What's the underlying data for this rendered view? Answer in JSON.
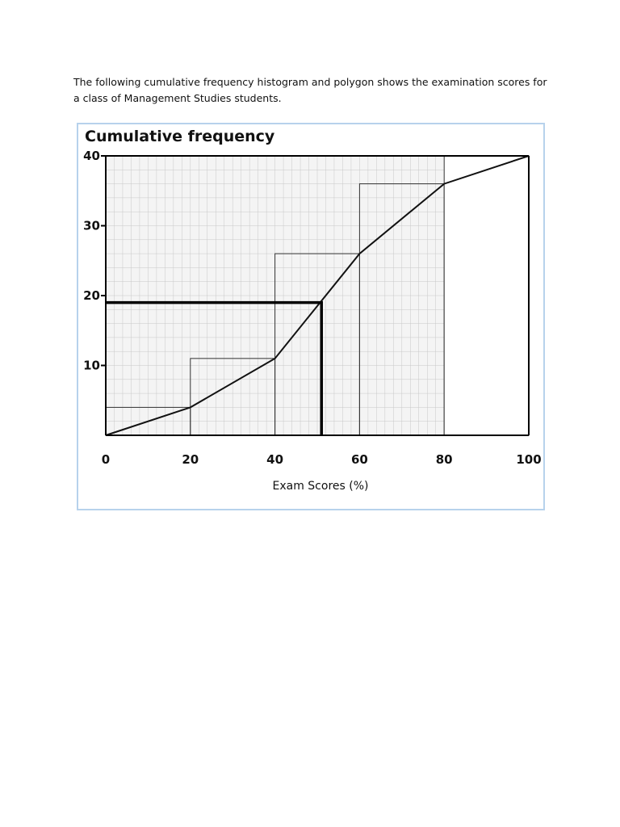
{
  "intro_text": "The following cumulative frequency histogram and polygon shows the examination scores for a class of Management Studies students.",
  "chart_data": {
    "type": "bar",
    "title": "Cumulative frequency",
    "xlabel": "Exam Scores (%)",
    "ylabel": "",
    "xlim": [
      0,
      100
    ],
    "ylim": [
      0,
      40
    ],
    "x_ticks": [
      0,
      20,
      40,
      60,
      80,
      100
    ],
    "y_ticks": [
      10,
      20,
      30,
      40
    ],
    "grid": true,
    "histogram": {
      "bin_edges": [
        0,
        20,
        40,
        60,
        80,
        100
      ],
      "cumulative_values": [
        4,
        11,
        26,
        36,
        40
      ]
    },
    "polygon": {
      "x": [
        0,
        20,
        40,
        60,
        80,
        100
      ],
      "y": [
        0,
        4,
        11,
        26,
        36,
        40
      ]
    },
    "reading_line": {
      "x": 51,
      "y": 19
    }
  }
}
